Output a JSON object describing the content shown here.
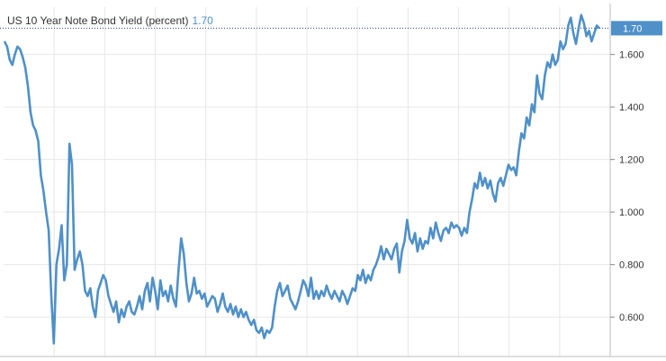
{
  "chart_data": {
    "type": "line",
    "title": "US 10 Year Note Bond Yield (percent)",
    "last_value_label": "1.70",
    "xlabel": "",
    "ylabel": "",
    "ylim": [
      0.45,
      1.78
    ],
    "y_ticks": [
      {
        "value": 0.6,
        "label": "0.600"
      },
      {
        "value": 0.8,
        "label": "0.800"
      },
      {
        "value": 1.0,
        "label": "1.000"
      },
      {
        "value": 1.2,
        "label": "1.200"
      },
      {
        "value": 1.4,
        "label": "1.400"
      },
      {
        "value": 1.6,
        "label": "1.600"
      }
    ],
    "x_categories": 12,
    "grid": true,
    "line_color": "#4f90c8",
    "series": [
      {
        "values": [
          1.65,
          1.63,
          1.58,
          1.56,
          1.6,
          1.63,
          1.62,
          1.59,
          1.55,
          1.48,
          1.38,
          1.33,
          1.31,
          1.27,
          1.14,
          1.08,
          1.0,
          0.93,
          0.68,
          0.5,
          0.8,
          0.86,
          0.95,
          0.74,
          0.8,
          1.26,
          1.18,
          0.78,
          0.82,
          0.85,
          0.8,
          0.7,
          0.68,
          0.71,
          0.64,
          0.6,
          0.7,
          0.73,
          0.76,
          0.74,
          0.68,
          0.65,
          0.62,
          0.66,
          0.58,
          0.63,
          0.6,
          0.64,
          0.66,
          0.62,
          0.61,
          0.64,
          0.68,
          0.63,
          0.7,
          0.73,
          0.66,
          0.75,
          0.7,
          0.63,
          0.74,
          0.68,
          0.7,
          0.66,
          0.72,
          0.67,
          0.64,
          0.78,
          0.9,
          0.84,
          0.73,
          0.66,
          0.69,
          0.75,
          0.69,
          0.7,
          0.67,
          0.69,
          0.64,
          0.66,
          0.68,
          0.67,
          0.62,
          0.65,
          0.69,
          0.64,
          0.62,
          0.65,
          0.61,
          0.64,
          0.6,
          0.63,
          0.6,
          0.62,
          0.59,
          0.57,
          0.59,
          0.55,
          0.54,
          0.56,
          0.52,
          0.55,
          0.54,
          0.56,
          0.64,
          0.7,
          0.73,
          0.68,
          0.7,
          0.72,
          0.67,
          0.65,
          0.63,
          0.66,
          0.7,
          0.74,
          0.72,
          0.68,
          0.75,
          0.67,
          0.7,
          0.67,
          0.7,
          0.68,
          0.72,
          0.69,
          0.67,
          0.7,
          0.68,
          0.66,
          0.7,
          0.68,
          0.65,
          0.68,
          0.71,
          0.7,
          0.76,
          0.74,
          0.78,
          0.73,
          0.76,
          0.74,
          0.78,
          0.8,
          0.83,
          0.87,
          0.82,
          0.86,
          0.84,
          0.82,
          0.86,
          0.88,
          0.77,
          0.85,
          0.89,
          0.97,
          0.9,
          0.88,
          0.92,
          0.85,
          0.9,
          0.86,
          0.89,
          0.88,
          0.94,
          0.9,
          0.96,
          0.92,
          0.89,
          0.93,
          0.94,
          0.92,
          0.96,
          0.94,
          0.95,
          0.94,
          0.91,
          0.94,
          0.92,
          1.0,
          1.05,
          1.11,
          1.09,
          1.15,
          1.1,
          1.13,
          1.09,
          1.12,
          1.07,
          1.04,
          1.11,
          1.13,
          1.1,
          1.14,
          1.18,
          1.16,
          1.17,
          1.14,
          1.23,
          1.3,
          1.28,
          1.36,
          1.33,
          1.41,
          1.38,
          1.52,
          1.45,
          1.43,
          1.52,
          1.57,
          1.55,
          1.6,
          1.56,
          1.58,
          1.65,
          1.62,
          1.64,
          1.71,
          1.74,
          1.68,
          1.64,
          1.7,
          1.75,
          1.72,
          1.67,
          1.69,
          1.65,
          1.68,
          1.71,
          1.7
        ]
      }
    ]
  }
}
